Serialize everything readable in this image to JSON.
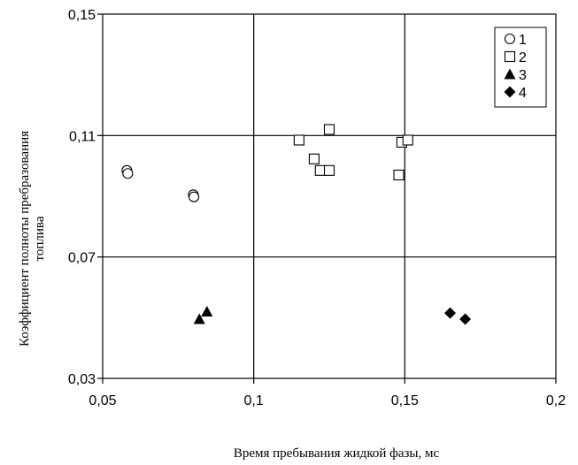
{
  "chart_data": {
    "type": "scatter",
    "title": "",
    "xlabel": "Время пребывания жидкой фазы, мс",
    "ylabel_line1": "Коэффициент полноты пребразования",
    "ylabel_line2": "топлива",
    "xlim": [
      0.05,
      0.2
    ],
    "ylim": [
      0.03,
      0.15
    ],
    "x_ticks": [
      0.05,
      0.1,
      0.15,
      0.2
    ],
    "x_tick_labels": [
      "0,05",
      "0,1",
      "0,15",
      "0,2"
    ],
    "y_ticks": [
      0.03,
      0.07,
      0.11,
      0.15
    ],
    "y_tick_labels": [
      "0,03",
      "0,07",
      "0,11",
      "0,15"
    ],
    "grid": true,
    "legend_position": "top-right",
    "series": [
      {
        "name": "1",
        "marker": "circle-open",
        "points": [
          [
            0.058,
            0.0985
          ],
          [
            0.0583,
            0.0975
          ],
          [
            0.08,
            0.0905
          ],
          [
            0.0802,
            0.0898
          ]
        ]
      },
      {
        "name": "2",
        "marker": "square-open",
        "points": [
          [
            0.115,
            0.1085
          ],
          [
            0.12,
            0.1023
          ],
          [
            0.122,
            0.0985
          ],
          [
            0.125,
            0.0985
          ],
          [
            0.125,
            0.112
          ],
          [
            0.148,
            0.097
          ],
          [
            0.149,
            0.1078
          ],
          [
            0.151,
            0.1085
          ]
        ]
      },
      {
        "name": "3",
        "marker": "triangle-filled",
        "points": [
          [
            0.082,
            0.0495
          ],
          [
            0.0845,
            0.052
          ]
        ]
      },
      {
        "name": "4",
        "marker": "diamond-filled",
        "points": [
          [
            0.165,
            0.0515
          ],
          [
            0.17,
            0.0495
          ]
        ]
      }
    ]
  }
}
